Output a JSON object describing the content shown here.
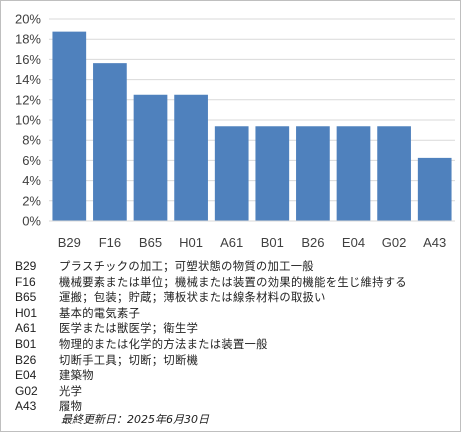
{
  "chart_data": {
    "type": "bar",
    "categories": [
      "B29",
      "F16",
      "B65",
      "H01",
      "A61",
      "B01",
      "B26",
      "E04",
      "G02",
      "A43"
    ],
    "values": [
      18.75,
      15.63,
      12.5,
      12.5,
      9.38,
      9.38,
      9.38,
      9.38,
      9.38,
      6.25
    ],
    "ylim": [
      0,
      20
    ],
    "yticks": [
      "0%",
      "2%",
      "4%",
      "6%",
      "8%",
      "10%",
      "12%",
      "14%",
      "16%",
      "18%",
      "20%"
    ],
    "bar_color": "#4f81bd",
    "gridlines": true,
    "legend_placement": "bottom"
  },
  "legend": [
    {
      "code": "B29",
      "desc": "プラスチックの加工；可塑状態の物質の加工一般"
    },
    {
      "code": "F16",
      "desc": "機械要素または単位；機械または装置の効果的機能を生じ維持する"
    },
    {
      "code": "B65",
      "desc": "運搬；包装；貯蔵；薄板状または線条材料の取扱い"
    },
    {
      "code": "H01",
      "desc": "基本的電気素子"
    },
    {
      "code": "A61",
      "desc": "医学または獣医学；衛生学"
    },
    {
      "code": "B01",
      "desc": "物理的または化学的方法または装置一般"
    },
    {
      "code": "B26",
      "desc": "切断手工具；切断；切断機"
    },
    {
      "code": "E04",
      "desc": "建築物"
    },
    {
      "code": "G02",
      "desc": "光学"
    },
    {
      "code": "A43",
      "desc": "履物"
    }
  ],
  "footer": "最終更新日：2025年6月30日"
}
